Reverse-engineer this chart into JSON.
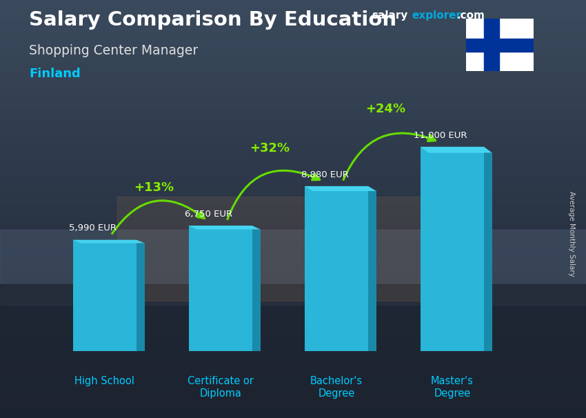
{
  "title": "Salary Comparison By Education",
  "subtitle": "Shopping Center Manager",
  "country": "Finland",
  "ylabel": "Average Monthly Salary",
  "categories": [
    "High School",
    "Certificate or\nDiploma",
    "Bachelor's\nDegree",
    "Master's\nDegree"
  ],
  "values": [
    5990,
    6750,
    8880,
    11000
  ],
  "labels": [
    "5,990 EUR",
    "6,750 EUR",
    "8,880 EUR",
    "11,000 EUR"
  ],
  "pct_changes": [
    "+13%",
    "+32%",
    "+24%"
  ],
  "bar_color_face": "#29b6d8",
  "bar_color_side": "#1a8aaa",
  "bar_color_top": "#45d4f0",
  "bg_top_color": "#3a4a5c",
  "bg_bottom_color": "#1a2030",
  "title_color": "#ffffff",
  "subtitle_color": "#e0e0e0",
  "country_color": "#00ccff",
  "label_color": "#ffffff",
  "pct_color": "#88ee00",
  "arrow_color": "#66dd00",
  "xlabel_color": "#00ccff",
  "site_salary_color": "#ffffff",
  "site_explorer_color": "#00aadd",
  "site_com_color": "#ffffff",
  "ylabel_color": "#cccccc",
  "bar_width": 0.55,
  "ylim": [
    0,
    13500
  ],
  "flag_blue": "#003399",
  "flag_white": "#ffffff"
}
